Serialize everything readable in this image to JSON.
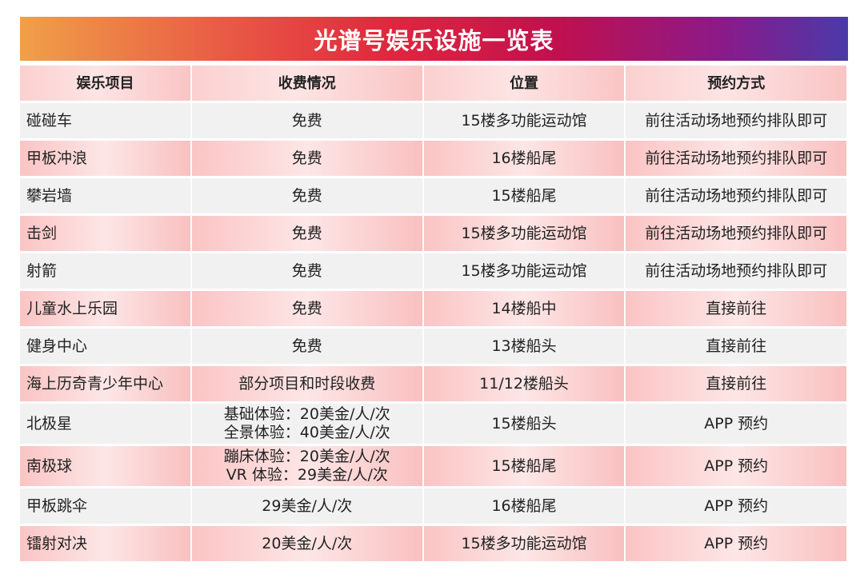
{
  "title": "光谱号娱乐设施一览表",
  "columns": [
    "娱乐项目",
    "收费情况",
    "位置",
    "预约方式"
  ],
  "rows": [
    {
      "name": "碰碰车",
      "fee": [
        "免费"
      ],
      "location": "15楼多功能运动馆",
      "booking": "前往活动场地预约排队即可"
    },
    {
      "name": "甲板冲浪",
      "fee": [
        "免费"
      ],
      "location": "16楼船尾",
      "booking": "前往活动场地预约排队即可"
    },
    {
      "name": "攀岩墙",
      "fee": [
        "免费"
      ],
      "location": "15楼船尾",
      "booking": "前往活动场地预约排队即可"
    },
    {
      "name": "击剑",
      "fee": [
        "免费"
      ],
      "location": "15楼多功能运动馆",
      "booking": "前往活动场地预约排队即可"
    },
    {
      "name": "射箭",
      "fee": [
        "免费"
      ],
      "location": "15楼多功能运动馆",
      "booking": "前往活动场地预约排队即可"
    },
    {
      "name": "儿童水上乐园",
      "fee": [
        "免费"
      ],
      "location": "14楼船中",
      "booking": "直接前往"
    },
    {
      "name": "健身中心",
      "fee": [
        "免费"
      ],
      "location": "13楼船头",
      "booking": "直接前往"
    },
    {
      "name": "海上历奇青少年中心",
      "fee": [
        "部分项目和时段收费"
      ],
      "location": "11/12楼船头",
      "booking": "直接前往"
    },
    {
      "name": "北极星",
      "fee": [
        "基础体验：20美金/人/次",
        "全景体验：40美金/人/次"
      ],
      "location": "15楼船头",
      "booking": "APP 预约"
    },
    {
      "name": "南极球",
      "fee": [
        "蹦床体验：20美金/人/次",
        "VR 体验：29美金/人/次"
      ],
      "location": "15楼船尾",
      "booking": "APP 预约"
    },
    {
      "name": "甲板跳伞",
      "fee": [
        "29美金/人/次"
      ],
      "location": "16楼船尾",
      "booking": "APP 预约"
    },
    {
      "name": "镭射对决",
      "fee": [
        "20美金/人/次"
      ],
      "location": "15楼多功能运动馆",
      "booking": "APP 预约"
    }
  ]
}
